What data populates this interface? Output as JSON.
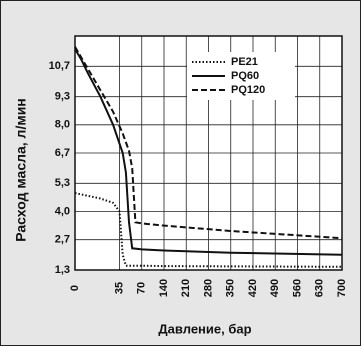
{
  "chart_data": {
    "type": "line",
    "y_label": "Расход масла, л/мин",
    "x_label": "Давление, бар",
    "xlim": [
      0,
      700
    ],
    "xticks": [
      0,
      35,
      70,
      140,
      210,
      280,
      350,
      420,
      490,
      560,
      630,
      700
    ],
    "ylim": [
      1.3,
      12.1
    ],
    "yticks": [
      {
        "value": 1.3,
        "label": "1,3"
      },
      {
        "value": 2.7,
        "label": "2,7"
      },
      {
        "value": 4.0,
        "label": "4,0"
      },
      {
        "value": 5.3,
        "label": "5,3"
      },
      {
        "value": 6.7,
        "label": "6,7"
      },
      {
        "value": 8.0,
        "label": "8,0"
      },
      {
        "value": 9.3,
        "label": "9,3"
      },
      {
        "value": 10.7,
        "label": "10,7"
      }
    ],
    "grid": true,
    "legend": "upper right",
    "series": [
      {
        "name": "PE21",
        "color": "#111111",
        "style": "dotted",
        "x": [
          0,
          20,
          30,
          35,
          40,
          45,
          70,
          140,
          700
        ],
        "values": [
          4.85,
          4.6,
          4.4,
          4.0,
          2.0,
          1.5,
          1.5,
          1.48,
          1.45
        ]
      },
      {
        "name": "PQ60",
        "color": "#111111",
        "style": "solid",
        "x": [
          0,
          5,
          10,
          20,
          30,
          40,
          45,
          50,
          55,
          70,
          140,
          350,
          700
        ],
        "values": [
          11.5,
          11.0,
          10.4,
          9.3,
          8.0,
          6.7,
          5.8,
          3.5,
          2.3,
          2.25,
          2.2,
          2.1,
          2.0
        ]
      },
      {
        "name": "PQ120",
        "color": "#111111",
        "style": "dashed",
        "x": [
          0,
          10,
          20,
          30,
          40,
          50,
          55,
          60,
          70,
          140,
          350,
          700
        ],
        "values": [
          11.6,
          10.6,
          9.6,
          8.6,
          7.6,
          6.8,
          6.0,
          3.5,
          3.45,
          3.35,
          3.1,
          2.77
        ]
      }
    ]
  }
}
